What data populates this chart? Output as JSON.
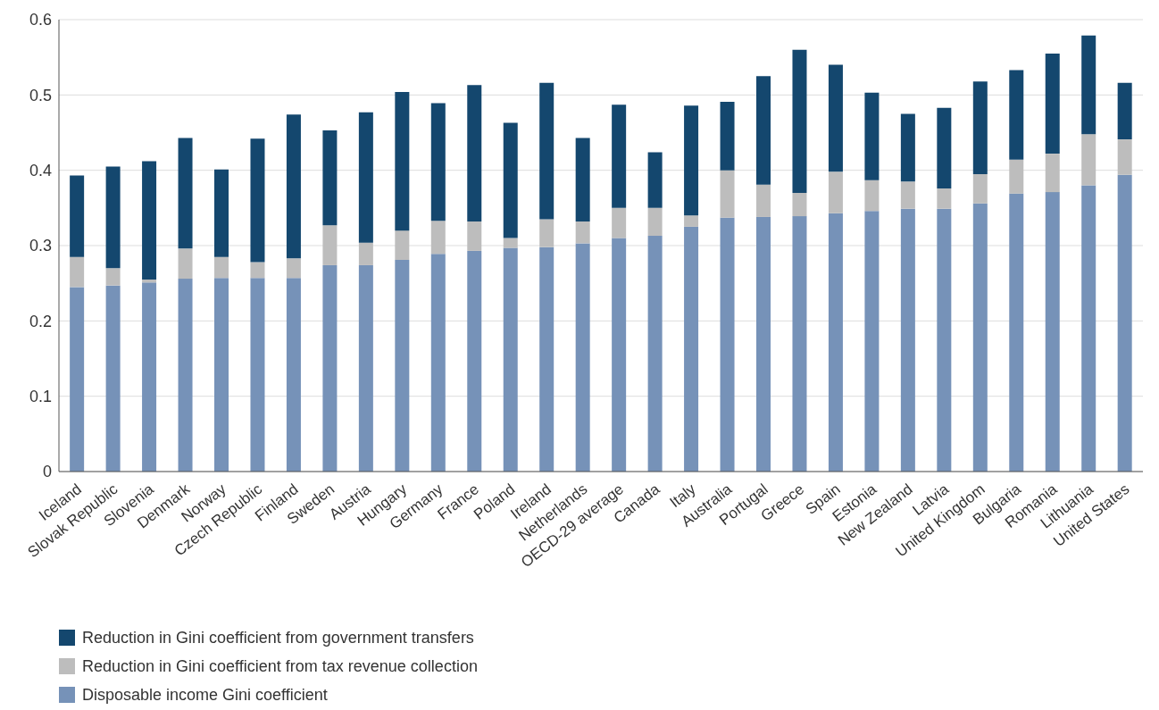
{
  "chart_data": {
    "type": "bar",
    "stacked": true,
    "categories": [
      "Iceland",
      "Slovak Republic",
      "Slovenia",
      "Denmark",
      "Norway",
      "Czech Republic",
      "Finland",
      "Sweden",
      "Austria",
      "Hungary",
      "Germany",
      "France",
      "Poland",
      "Ireland",
      "Netherlands",
      "OECD-29 average",
      "Canada",
      "Italy",
      "Australia",
      "Portugal",
      "Greece",
      "Spain",
      "Estonia",
      "New Zealand",
      "Latvia",
      "United Kingdom",
      "Bulgaria",
      "Romania",
      "Lithuania",
      "United States"
    ],
    "series": [
      {
        "name": "Disposable income Gini coefficient",
        "color": "#7692b8",
        "values": [
          0.245,
          0.247,
          0.251,
          0.256,
          0.257,
          0.257,
          0.257,
          0.274,
          0.274,
          0.281,
          0.289,
          0.293,
          0.297,
          0.298,
          0.303,
          0.31,
          0.313,
          0.325,
          0.337,
          0.338,
          0.339,
          0.343,
          0.346,
          0.349,
          0.349,
          0.356,
          0.369,
          0.371,
          0.38,
          0.394
        ]
      },
      {
        "name": "Reduction in Gini coefficient from tax revenue collection",
        "color": "#bdbdbd",
        "values": [
          0.04,
          0.023,
          0.004,
          0.04,
          0.028,
          0.021,
          0.026,
          0.053,
          0.03,
          0.039,
          0.044,
          0.039,
          0.013,
          0.037,
          0.029,
          0.04,
          0.037,
          0.015,
          0.063,
          0.043,
          0.031,
          0.055,
          0.041,
          0.036,
          0.027,
          0.039,
          0.045,
          0.051,
          0.068,
          0.047
        ]
      },
      {
        "name": "Reduction in Gini coefficient from government transfers",
        "color": "#14476e",
        "values": [
          0.108,
          0.135,
          0.157,
          0.147,
          0.116,
          0.164,
          0.191,
          0.126,
          0.173,
          0.184,
          0.156,
          0.181,
          0.153,
          0.181,
          0.111,
          0.137,
          0.074,
          0.146,
          0.091,
          0.144,
          0.19,
          0.142,
          0.116,
          0.09,
          0.107,
          0.123,
          0.119,
          0.133,
          0.131,
          0.075
        ]
      }
    ],
    "ylim": [
      0,
      0.6
    ],
    "yticks": [
      0,
      0.1,
      0.2,
      0.3,
      0.4,
      0.5,
      0.6
    ],
    "grid": "y",
    "legend": "bottom left"
  }
}
